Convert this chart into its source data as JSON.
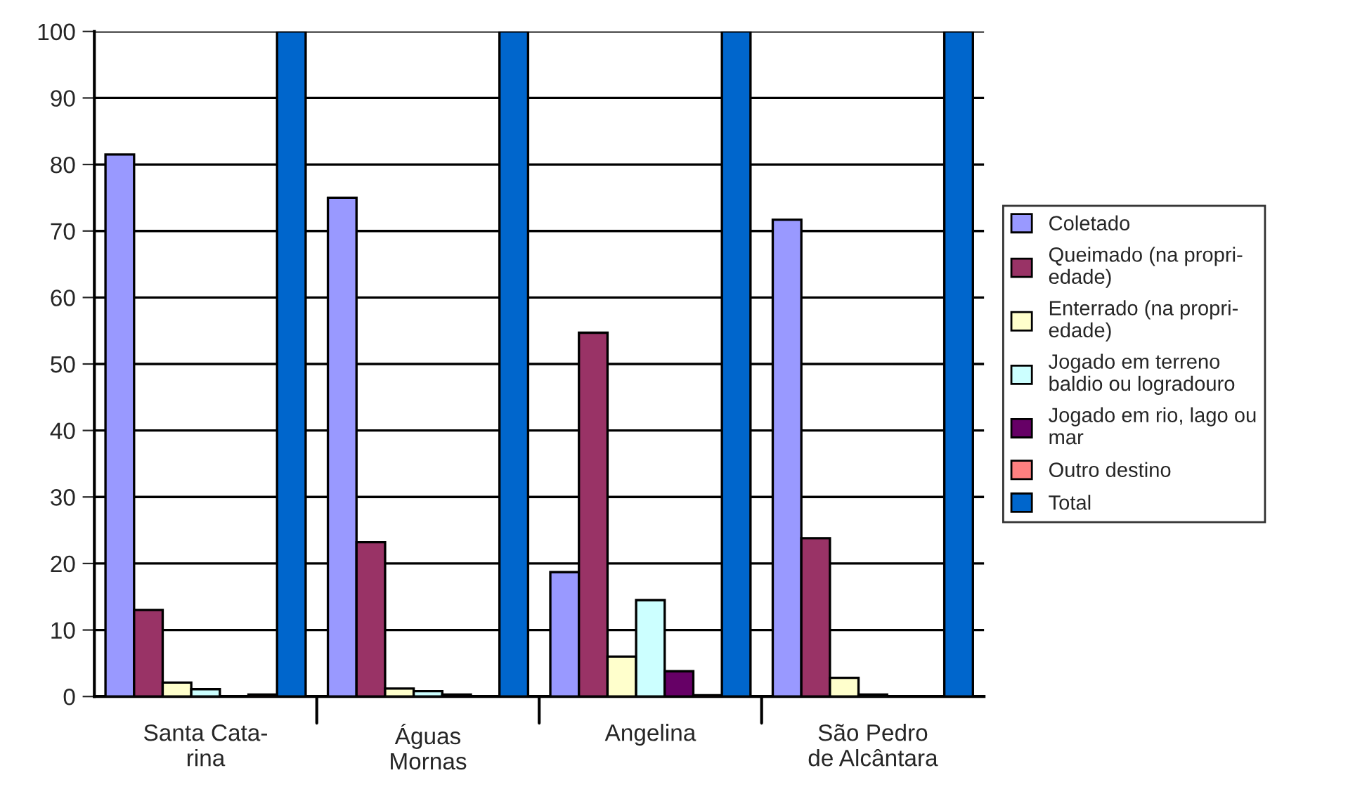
{
  "chart_data": {
    "type": "bar",
    "categories": [
      "Santa Cata-\nrina",
      "Águas\nMornas",
      "Angelina",
      "São Pedro\nde Alcântara"
    ],
    "series": [
      {
        "name": "Coletado",
        "color": "#9999ff",
        "values": [
          81.5,
          75,
          18.7,
          71.7
        ]
      },
      {
        "name": "Queimado (na propri-\nedade)",
        "color": "#993366",
        "values": [
          13,
          23.2,
          54.7,
          23.8
        ]
      },
      {
        "name": "Enterrado (na propri-\nedade)",
        "color": "#ffffcc",
        "values": [
          2.1,
          1.2,
          6,
          2.8
        ]
      },
      {
        "name": "Jogado em terreno\nbaldio ou logradouro",
        "color": "#ccffff",
        "values": [
          1.1,
          0.8,
          14.5,
          0.3
        ]
      },
      {
        "name": "Jogado em rio, lago ou\nmar",
        "color": "#660066",
        "values": [
          null,
          0.3,
          3.8,
          null
        ]
      },
      {
        "name": "Outro destino",
        "color": "#ff8080",
        "values": [
          0.3,
          null,
          0.2,
          null
        ]
      },
      {
        "name": "Total",
        "color": "#0066cc",
        "values": [
          100,
          100,
          100,
          100
        ]
      }
    ],
    "ylim": [
      0,
      100
    ],
    "yticks": [
      0,
      10,
      20,
      30,
      40,
      50,
      60,
      70,
      80,
      90,
      100
    ],
    "grid": "y",
    "legend": "right"
  }
}
